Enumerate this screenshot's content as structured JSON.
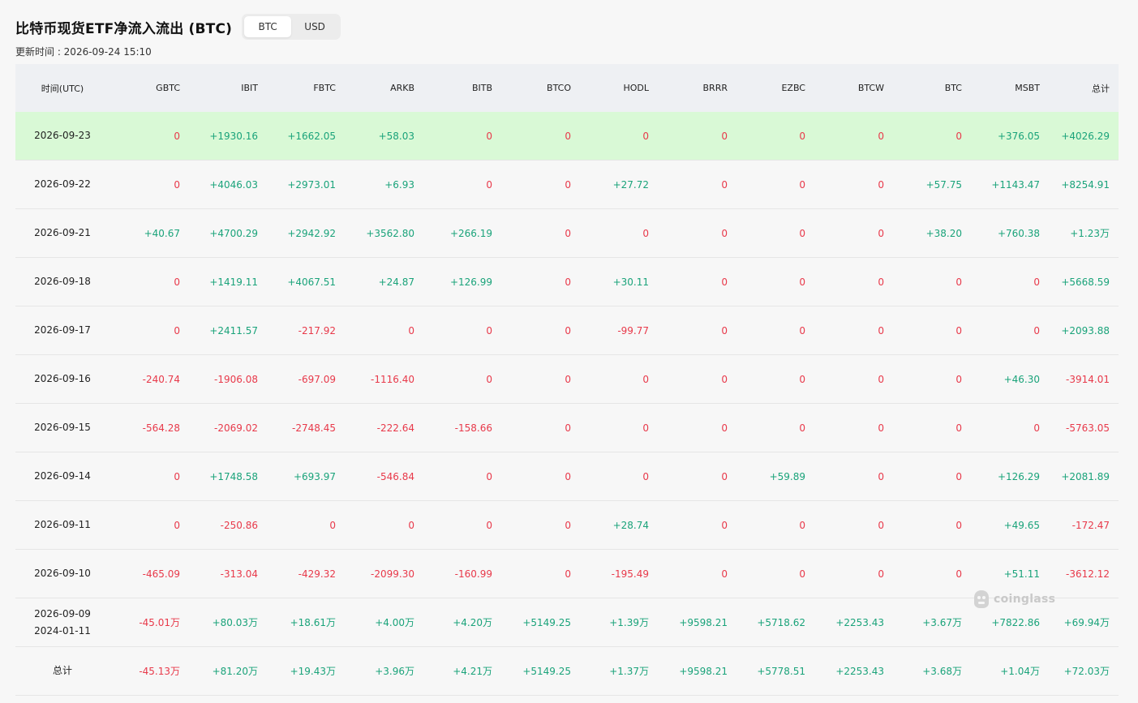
{
  "header": {
    "title": "比特币现货ETF净流入流出 (BTC)",
    "toggle": [
      "BTC",
      "USD"
    ],
    "active": "BTC",
    "updated": "更新时间 : 2026-09-24 15:10"
  },
  "table": {
    "columns": [
      "时间(UTC)",
      "GBTC",
      "IBIT",
      "FBTC",
      "ARKB",
      "BITB",
      "BTCO",
      "HODL",
      "BRRR",
      "EZBC",
      "BTCW",
      "BTC",
      "MSBT",
      "总计"
    ],
    "rows": [
      {
        "date": [
          "2026-09-23"
        ],
        "values": [
          "0",
          "+1930.16",
          "+1662.05",
          "+58.03",
          "0",
          "0",
          "0",
          "0",
          "0",
          "0",
          "0",
          "+376.05",
          "+4026.29"
        ]
      },
      {
        "date": [
          "2026-09-22"
        ],
        "values": [
          "0",
          "+4046.03",
          "+2973.01",
          "+6.93",
          "0",
          "0",
          "+27.72",
          "0",
          "0",
          "0",
          "+57.75",
          "+1143.47",
          "+8254.91"
        ]
      },
      {
        "date": [
          "2026-09-21"
        ],
        "values": [
          "+40.67",
          "+4700.29",
          "+2942.92",
          "+3562.80",
          "+266.19",
          "0",
          "0",
          "0",
          "0",
          "0",
          "+38.20",
          "+760.38",
          "+1.23万"
        ]
      },
      {
        "date": [
          "2026-09-18"
        ],
        "values": [
          "0",
          "+1419.11",
          "+4067.51",
          "+24.87",
          "+126.99",
          "0",
          "+30.11",
          "0",
          "0",
          "0",
          "0",
          "0",
          "+5668.59"
        ]
      },
      {
        "date": [
          "2026-09-17"
        ],
        "values": [
          "0",
          "+2411.57",
          "-217.92",
          "0",
          "0",
          "0",
          "-99.77",
          "0",
          "0",
          "0",
          "0",
          "0",
          "+2093.88"
        ]
      },
      {
        "date": [
          "2026-09-16"
        ],
        "values": [
          "-240.74",
          "-1906.08",
          "-697.09",
          "-1116.40",
          "0",
          "0",
          "0",
          "0",
          "0",
          "0",
          "0",
          "+46.30",
          "-3914.01"
        ]
      },
      {
        "date": [
          "2026-09-15"
        ],
        "values": [
          "-564.28",
          "-2069.02",
          "-2748.45",
          "-222.64",
          "-158.66",
          "0",
          "0",
          "0",
          "0",
          "0",
          "0",
          "0",
          "-5763.05"
        ]
      },
      {
        "date": [
          "2026-09-14"
        ],
        "values": [
          "0",
          "+1748.58",
          "+693.97",
          "-546.84",
          "0",
          "0",
          "0",
          "0",
          "+59.89",
          "0",
          "0",
          "+126.29",
          "+2081.89"
        ]
      },
      {
        "date": [
          "2026-09-11"
        ],
        "values": [
          "0",
          "-250.86",
          "0",
          "0",
          "0",
          "0",
          "+28.74",
          "0",
          "0",
          "0",
          "0",
          "+49.65",
          "-172.47"
        ]
      },
      {
        "date": [
          "2026-09-10"
        ],
        "values": [
          "-465.09",
          "-313.04",
          "-429.32",
          "-2099.30",
          "-160.99",
          "0",
          "-195.49",
          "0",
          "0",
          "0",
          "0",
          "+51.11",
          "-3612.12"
        ]
      },
      {
        "date": [
          "2026-09-09",
          "2024-01-11"
        ],
        "values": [
          "-45.01万",
          "+80.03万",
          "+18.61万",
          "+4.00万",
          "+4.20万",
          "+5149.25",
          "+1.39万",
          "+9598.21",
          "+5718.62",
          "+2253.43",
          "+3.67万",
          "+7822.86",
          "+69.94万"
        ]
      },
      {
        "date": [
          "总计"
        ],
        "values": [
          "-45.13万",
          "+81.20万",
          "+19.43万",
          "+3.96万",
          "+4.21万",
          "+5149.25",
          "+1.37万",
          "+9598.21",
          "+5778.51",
          "+2253.43",
          "+3.68万",
          "+1.04万",
          "+72.03万"
        ]
      }
    ],
    "highlight_row": 0
  },
  "watermark": "coinglass",
  "colors": {
    "positive": "#1aa37a",
    "negative": "#e8394a",
    "highlight": "#d9f9d6",
    "header_bg": "#eef0f3"
  }
}
